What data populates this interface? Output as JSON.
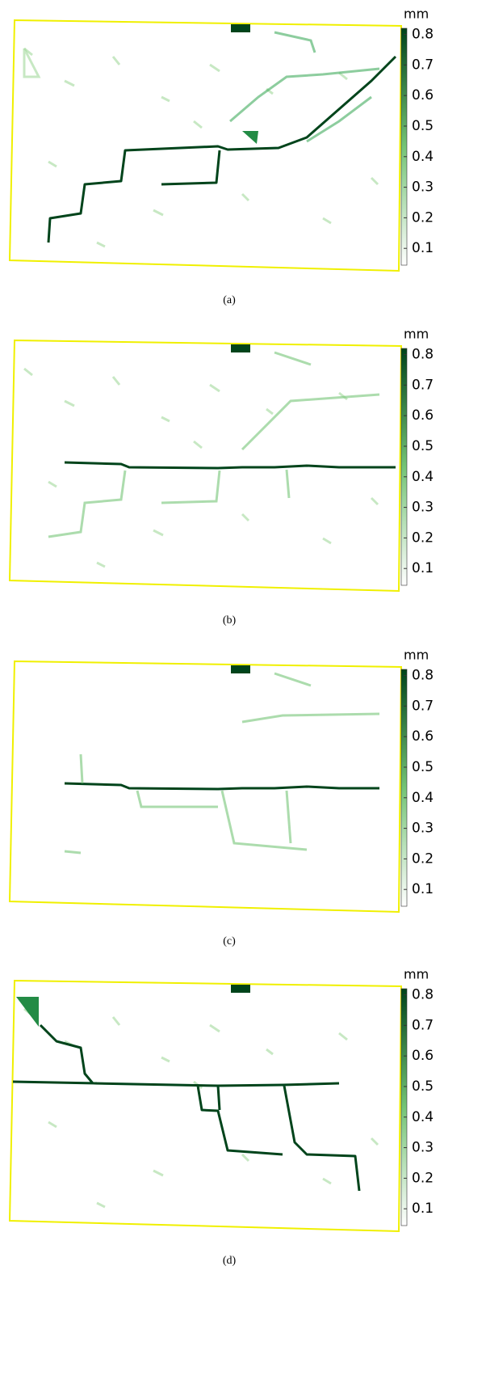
{
  "panels": [
    {
      "caption": "(a)"
    },
    {
      "caption": "(b)"
    },
    {
      "caption": "(c)"
    },
    {
      "caption": "(d)"
    }
  ],
  "colorbar": {
    "label": "mm",
    "clim": [
      0.045,
      0.82
    ],
    "ticks": [
      0.1,
      0.2,
      0.3,
      0.4,
      0.5,
      0.6,
      0.7,
      0.8
    ],
    "colors": [
      "#ffffff",
      "#00441b"
    ]
  }
}
